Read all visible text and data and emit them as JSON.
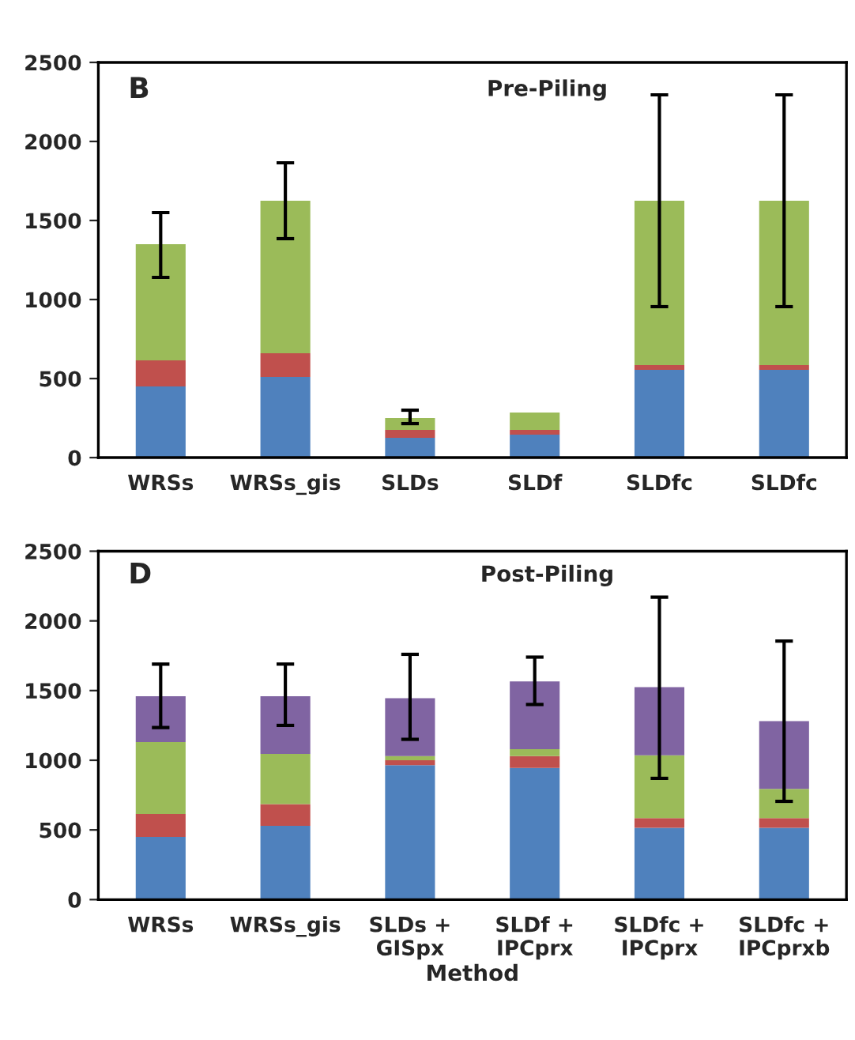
{
  "chart_data": [
    {
      "type": "bar",
      "stacked": true,
      "title": "Pre-Piling",
      "annotations": [
        "B"
      ],
      "categories": [
        "WRSs",
        "WRSs_gis",
        "SLDs",
        "SLDf",
        "SLDfc",
        "SLDfc"
      ],
      "ylim": [
        0,
        2500
      ],
      "yticks": [
        0,
        500,
        1000,
        1500,
        2000,
        2500
      ],
      "series": [
        {
          "color": "#4f81bd",
          "values": [
            450,
            510,
            125,
            145,
            555,
            555
          ]
        },
        {
          "color": "#c0504d",
          "values": [
            165,
            150,
            50,
            30,
            30,
            30
          ]
        },
        {
          "color": "#9bbb59",
          "values": [
            735,
            965,
            75,
            110,
            1040,
            1040
          ],
          "errors": [
            [
              1140,
              1550
            ],
            [
              1385,
              1865
            ],
            [
              215,
              300
            ],
            null,
            [
              955,
              2295
            ],
            [
              955,
              2295
            ]
          ]
        }
      ]
    },
    {
      "type": "bar",
      "stacked": true,
      "title": "Post-Piling",
      "annotations": [
        "D"
      ],
      "xlabel": "Method",
      "categories": [
        "WRSs",
        "WRSs_gis",
        "SLDs +\nGISpx",
        "SLDf +\nIPCprx",
        "SLDfc +\nIPCprx",
        "SLDfc +\nIPCprxb"
      ],
      "ylim": [
        0,
        2500
      ],
      "yticks": [
        0,
        500,
        1000,
        1500,
        2000,
        2500
      ],
      "series": [
        {
          "color": "#4f81bd",
          "values": [
            450,
            530,
            965,
            945,
            515,
            515
          ]
        },
        {
          "color": "#c0504d",
          "values": [
            165,
            155,
            35,
            85,
            70,
            70
          ]
        },
        {
          "color": "#9bbb59",
          "values": [
            515,
            360,
            30,
            50,
            450,
            210
          ]
        },
        {
          "color": "#8064a2",
          "values": [
            330,
            415,
            415,
            485,
            490,
            485
          ],
          "errors": [
            [
              1235,
              1690
            ],
            [
              1250,
              1690
            ],
            [
              1150,
              1760
            ],
            [
              1400,
              1740
            ],
            [
              870,
              2170
            ],
            [
              705,
              1855
            ]
          ]
        }
      ]
    }
  ]
}
